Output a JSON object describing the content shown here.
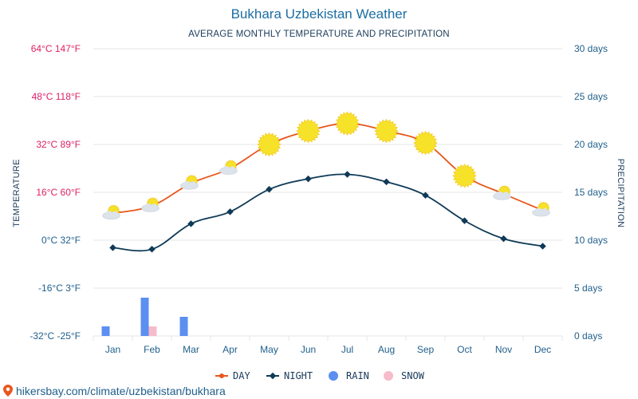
{
  "chart_data": {
    "type": "line",
    "title": "Bukhara Uzbekistan Weather",
    "subtitle": "AVERAGE MONTHLY TEMPERATURE AND PRECIPITATION",
    "categories": [
      "Jan",
      "Feb",
      "Mar",
      "Apr",
      "May",
      "Jun",
      "Jul",
      "Aug",
      "Sep",
      "Oct",
      "Nov",
      "Dec"
    ],
    "y_left": {
      "label": "TEMPERATURE",
      "unit": "°C",
      "range": [
        -32,
        64
      ],
      "ticks": [
        {
          "value": 64,
          "label": "64°C 147°F",
          "color": "#e01f66"
        },
        {
          "value": 48,
          "label": "48°C 118°F",
          "color": "#e01f66"
        },
        {
          "value": 32,
          "label": "32°C 89°F",
          "color": "#e01f66"
        },
        {
          "value": 16,
          "label": "16°C 60°F",
          "color": "#e01f66"
        },
        {
          "value": 0,
          "label": "0°C 32°F",
          "color": "#1f5f8b"
        },
        {
          "value": -16,
          "label": "-16°C 3°F",
          "color": "#1f5f8b"
        },
        {
          "value": -32,
          "label": "-32°C -25°F",
          "color": "#1f5f8b"
        }
      ]
    },
    "y_right": {
      "label": "PRECIPITATION",
      "unit": "days",
      "range": [
        0,
        30
      ],
      "ticks": [
        {
          "value": 30,
          "label": "30 days"
        },
        {
          "value": 25,
          "label": "25 days"
        },
        {
          "value": 20,
          "label": "20 days"
        },
        {
          "value": 15,
          "label": "15 days"
        },
        {
          "value": 10,
          "label": "10 days"
        },
        {
          "value": 5,
          "label": "5 days"
        },
        {
          "value": 0,
          "label": "0 days"
        }
      ]
    },
    "grid": true,
    "legend_position": "bottom",
    "series": [
      {
        "name": "DAY",
        "kind": "line",
        "axis": "left",
        "color": "#e8561c",
        "values": [
          9,
          11.5,
          19,
          24,
          32,
          36.5,
          39,
          36.5,
          32.5,
          21.5,
          15.5,
          10
        ]
      },
      {
        "name": "NIGHT",
        "kind": "line",
        "axis": "left",
        "color": "#0f3a57",
        "values": [
          -2.5,
          -3,
          5.5,
          9.5,
          17,
          20.5,
          22,
          19.5,
          15,
          6.5,
          0.5,
          -2
        ]
      },
      {
        "name": "RAIN",
        "kind": "bar",
        "axis": "right",
        "color": "#5b8ff0",
        "values": [
          1,
          4,
          2,
          0,
          0,
          0,
          0,
          0,
          0,
          0,
          0,
          0
        ]
      },
      {
        "name": "SNOW",
        "kind": "bar",
        "axis": "right",
        "color": "#f6bccb",
        "values": [
          0,
          1,
          0,
          0,
          0,
          0,
          0,
          0,
          0,
          0,
          0,
          0
        ]
      }
    ],
    "weather_icons": [
      "partly-cloudy-icon",
      "partly-cloudy-icon",
      "partly-cloudy-icon",
      "partly-cloudy-icon",
      "sun-icon",
      "sun-icon",
      "sun-icon",
      "sun-icon",
      "sun-icon",
      "sun-icon",
      "partly-cloudy-icon",
      "partly-cloudy-icon"
    ]
  },
  "footer": {
    "source_text": "hikersbay.com/climate/uzbekistan/bukhara",
    "icon": "location-pin-icon"
  },
  "colors": {
    "grid": "#e6e6e6",
    "sun": "#f7e22a",
    "sun_edge": "#f0c419",
    "cloud": "#dde3ea"
  }
}
